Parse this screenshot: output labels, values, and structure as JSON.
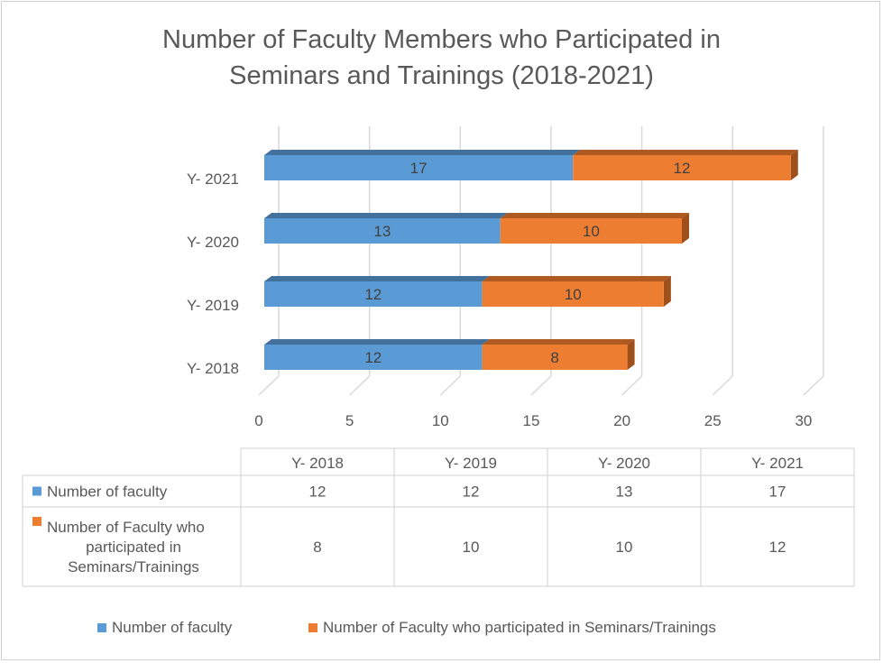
{
  "chart_data": {
    "type": "bar",
    "orientation": "horizontal",
    "stacked": true,
    "three_d": true,
    "title": "Number of Faculty Members who Participated in Seminars and Trainings (2018-2021)",
    "title_lines": [
      "Number of Faculty Members who Participated in",
      "Seminars and Trainings (2018-2021)"
    ],
    "categories": [
      "Y- 2018",
      "Y- 2019",
      "Y- 2020",
      "Y- 2021"
    ],
    "series": [
      {
        "name": "Number of faculty",
        "table_label": [
          "Number of faculty"
        ],
        "color": "#5b9bd5",
        "top_color": "#41719c",
        "values": [
          12,
          12,
          13,
          17
        ]
      },
      {
        "name": "Number of Faculty who participated in Seminars/Trainings",
        "table_label": [
          "Number of Faculty who",
          "participated in",
          "Seminars/Trainings"
        ],
        "color": "#ed7d31",
        "top_color": "#ae5a21",
        "values": [
          8,
          10,
          10,
          12
        ]
      }
    ],
    "xlim": [
      0,
      30
    ],
    "xticks": [
      0,
      5,
      10,
      15,
      20,
      25,
      30
    ],
    "grid": true,
    "legend": "bottom",
    "data_table": true
  }
}
